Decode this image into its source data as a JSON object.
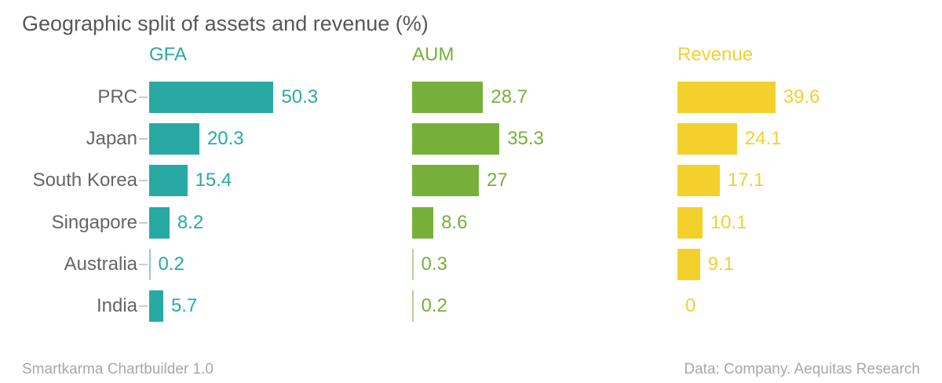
{
  "title": "Geographic split of assets and revenue (%)",
  "footer": {
    "left": "Smartkarma Chartbuilder 1.0",
    "right": "Data: Company. Aequitas Research"
  },
  "colors": {
    "gfa": "#28a9a4",
    "aum": "#76b03a",
    "revenue": "#f4d02c",
    "title_text": "#56575a",
    "category_text": "#646567",
    "footer_text": "#a6a8aa",
    "tick": "#cccccc",
    "background": "#ffffff"
  },
  "chart_data": {
    "type": "bar",
    "orientation": "horizontal",
    "title": "Geographic split of assets and revenue (%)",
    "categories": [
      "PRC",
      "Japan",
      "South Korea",
      "Singapore",
      "Australia",
      "India"
    ],
    "series": [
      {
        "name": "GFA",
        "color": "#28a9a4",
        "values": [
          50.3,
          20.3,
          15.4,
          8.2,
          0.2,
          5.7
        ]
      },
      {
        "name": "AUM",
        "color": "#76b03a",
        "values": [
          28.7,
          35.3,
          27,
          8.6,
          0.3,
          0.2
        ]
      },
      {
        "name": "Revenue",
        "color": "#f4d02c",
        "values": [
          39.6,
          24.1,
          17.1,
          10.1,
          9.1,
          0
        ]
      }
    ],
    "value_labels": true,
    "xlim": [
      0,
      52
    ],
    "grid": false,
    "legend_position": "panel-headers-top",
    "unit": "%"
  }
}
